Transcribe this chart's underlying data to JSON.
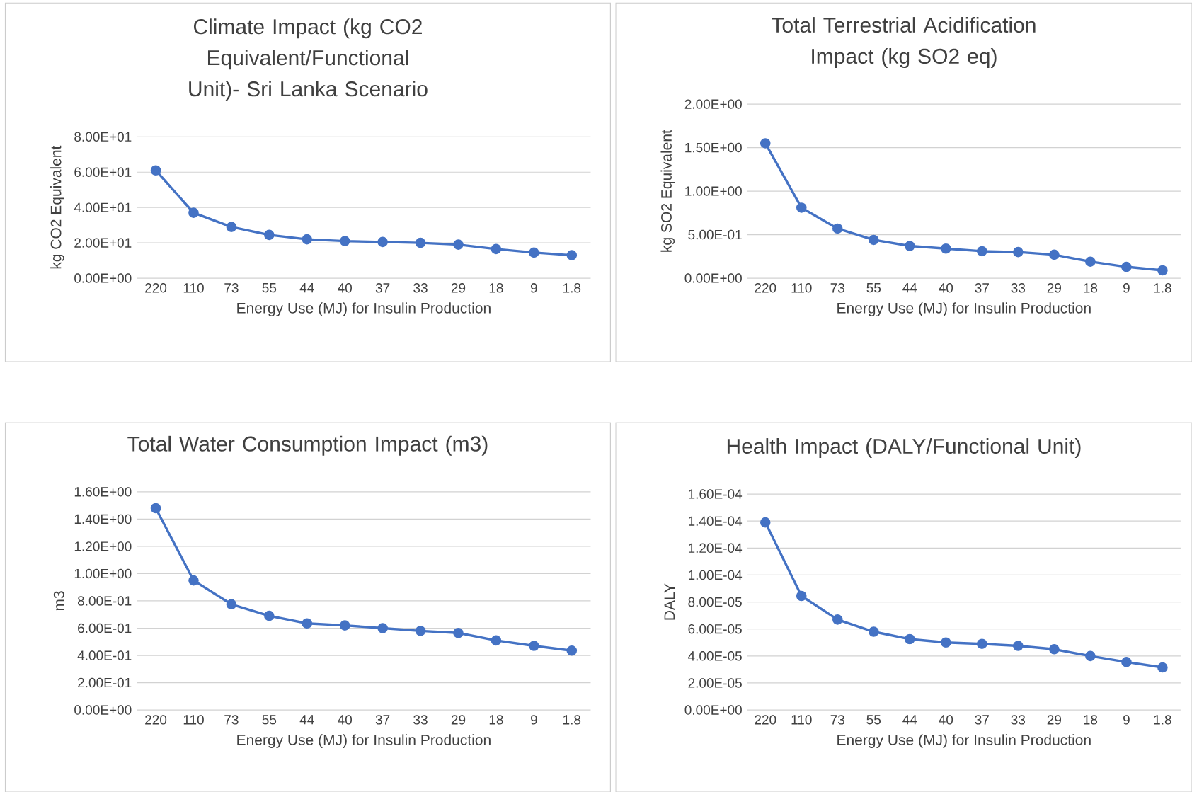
{
  "chart_data": [
    {
      "type": "line",
      "title": "Climate Impact (kg CO2 Equivalent/Functional Unit)- Sri Lanka Scenario",
      "xlabel": "Energy Use (MJ) for Insulin Production",
      "ylabel": "kg CO2 Equivalent",
      "categories": [
        "220",
        "110",
        "73",
        "55",
        "44",
        "40",
        "37",
        "33",
        "29",
        "18",
        "9",
        "1.8"
      ],
      "series": [
        {
          "color": "#4472c4",
          "values": [
            61,
            37,
            29,
            24.5,
            22,
            21,
            20.5,
            20,
            19,
            16.5,
            14.5,
            13
          ]
        }
      ],
      "ylim": [
        0,
        80
      ],
      "yticks": [
        {
          "value": 0,
          "label": "0.00E+00"
        },
        {
          "value": 20,
          "label": "2.00E+01"
        },
        {
          "value": 40,
          "label": "4.00E+01"
        },
        {
          "value": 60,
          "label": "6.00E+01"
        },
        {
          "value": 80,
          "label": "8.00E+01"
        }
      ],
      "grid": "y",
      "marker": "circle",
      "line_style": "solid"
    },
    {
      "type": "line",
      "title": "Total Terrestrial Acidification Impact (kg SO2 eq)",
      "xlabel": "Energy Use (MJ) for Insulin Production",
      "ylabel": "kg SO2 Equivalent",
      "categories": [
        "220",
        "110",
        "73",
        "55",
        "44",
        "40",
        "37",
        "33",
        "29",
        "18",
        "9",
        "1.8"
      ],
      "series": [
        {
          "color": "#4472c4",
          "values": [
            1.55,
            0.81,
            0.57,
            0.44,
            0.37,
            0.34,
            0.31,
            0.3,
            0.27,
            0.19,
            0.13,
            0.09
          ]
        }
      ],
      "ylim": [
        0,
        2
      ],
      "yticks": [
        {
          "value": 0,
          "label": "0.00E+00"
        },
        {
          "value": 0.5,
          "label": "5.00E-01"
        },
        {
          "value": 1,
          "label": "1.00E+00"
        },
        {
          "value": 1.5,
          "label": "1.50E+00"
        },
        {
          "value": 2,
          "label": "2.00E+00"
        }
      ],
      "grid": "y",
      "marker": "circle",
      "line_style": "solid"
    },
    {
      "type": "line",
      "title": "Total Water Consumption Impact (m3)",
      "xlabel": "Energy Use (MJ) for Insulin Production",
      "ylabel": "m3",
      "categories": [
        "220",
        "110",
        "73",
        "55",
        "44",
        "40",
        "37",
        "33",
        "29",
        "18",
        "9",
        "1.8"
      ],
      "series": [
        {
          "color": "#4472c4",
          "values": [
            1.48,
            0.95,
            0.775,
            0.69,
            0.635,
            0.62,
            0.6,
            0.58,
            0.565,
            0.51,
            0.47,
            0.435
          ]
        }
      ],
      "ylim": [
        0,
        1.6
      ],
      "yticks": [
        {
          "value": 0,
          "label": "0.00E+00"
        },
        {
          "value": 0.2,
          "label": "2.00E-01"
        },
        {
          "value": 0.4,
          "label": "4.00E-01"
        },
        {
          "value": 0.6,
          "label": "6.00E-01"
        },
        {
          "value": 0.8,
          "label": "8.00E-01"
        },
        {
          "value": 1,
          "label": "1.00E+00"
        },
        {
          "value": 1.2,
          "label": "1.20E+00"
        },
        {
          "value": 1.4,
          "label": "1.40E+00"
        },
        {
          "value": 1.6,
          "label": "1.60E+00"
        }
      ],
      "grid": "y",
      "marker": "circle",
      "line_style": "solid"
    },
    {
      "type": "line",
      "title": "Health Impact (DALY/Functional Unit)",
      "xlabel": "Energy Use (MJ) for Insulin Production",
      "ylabel": "DALY",
      "categories": [
        "220",
        "110",
        "73",
        "55",
        "44",
        "40",
        "37",
        "33",
        "29",
        "18",
        "9",
        "1.8"
      ],
      "series": [
        {
          "color": "#4472c4",
          "values": [
            0.000139,
            8.45e-05,
            6.7e-05,
            5.8e-05,
            5.25e-05,
            5e-05,
            4.9e-05,
            4.75e-05,
            4.5e-05,
            4e-05,
            3.55e-05,
            3.15e-05
          ]
        }
      ],
      "ylim": [
        0,
        0.00016
      ],
      "yticks": [
        {
          "value": 0,
          "label": "0.00E+00"
        },
        {
          "value": 2e-05,
          "label": "2.00E-05"
        },
        {
          "value": 4e-05,
          "label": "4.00E-05"
        },
        {
          "value": 6e-05,
          "label": "6.00E-05"
        },
        {
          "value": 8e-05,
          "label": "8.00E-05"
        },
        {
          "value": 0.0001,
          "label": "1.00E-04"
        },
        {
          "value": 0.00012,
          "label": "1.20E-04"
        },
        {
          "value": 0.00014,
          "label": "1.40E-04"
        },
        {
          "value": 0.00016,
          "label": "1.60E-04"
        }
      ],
      "grid": "y",
      "marker": "circle",
      "line_style": "solid"
    }
  ]
}
